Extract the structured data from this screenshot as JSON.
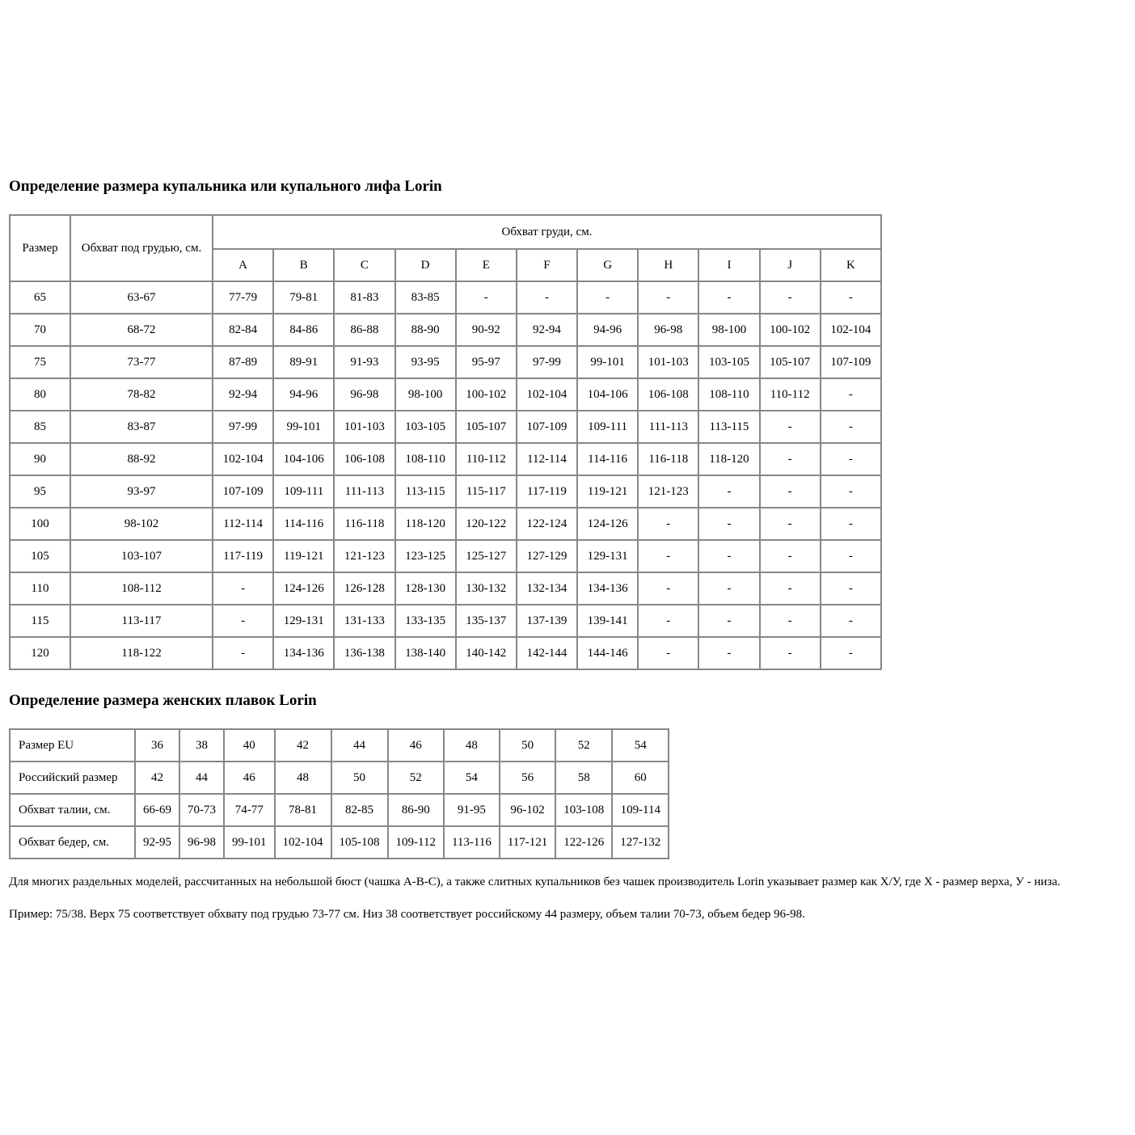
{
  "colors": {
    "border": "#878787",
    "text": "#000000",
    "background": "#ffffff"
  },
  "table1": {
    "title": "Определение размера купальника или купального лифа Lorin",
    "header": {
      "size": "Размер",
      "underbust": "Обхват под грудью, см.",
      "bust": "Обхват груди, см.",
      "cups": [
        "A",
        "B",
        "C",
        "D",
        "E",
        "F",
        "G",
        "H",
        "I",
        "J",
        "K"
      ]
    },
    "rows": [
      {
        "size": "65",
        "underbust": "63-67",
        "cups": [
          "77-79",
          "79-81",
          "81-83",
          "83-85",
          "-",
          "-",
          "-",
          "-",
          "-",
          "-",
          "-"
        ]
      },
      {
        "size": "70",
        "underbust": "68-72",
        "cups": [
          "82-84",
          "84-86",
          "86-88",
          "88-90",
          "90-92",
          "92-94",
          "94-96",
          "96-98",
          "98-100",
          "100-102",
          "102-104"
        ]
      },
      {
        "size": "75",
        "underbust": "73-77",
        "cups": [
          "87-89",
          "89-91",
          "91-93",
          "93-95",
          "95-97",
          "97-99",
          "99-101",
          "101-103",
          "103-105",
          "105-107",
          "107-109"
        ]
      },
      {
        "size": "80",
        "underbust": "78-82",
        "cups": [
          "92-94",
          "94-96",
          "96-98",
          "98-100",
          "100-102",
          "102-104",
          "104-106",
          "106-108",
          "108-110",
          "110-112",
          "-"
        ]
      },
      {
        "size": "85",
        "underbust": "83-87",
        "cups": [
          "97-99",
          "99-101",
          "101-103",
          "103-105",
          "105-107",
          "107-109",
          "109-111",
          "111-113",
          "113-115",
          "-",
          "-"
        ]
      },
      {
        "size": "90",
        "underbust": "88-92",
        "cups": [
          "102-104",
          "104-106",
          "106-108",
          "108-110",
          "110-112",
          "112-114",
          "114-116",
          "116-118",
          "118-120",
          "-",
          "-"
        ]
      },
      {
        "size": "95",
        "underbust": "93-97",
        "cups": [
          "107-109",
          "109-111",
          "111-113",
          "113-115",
          "115-117",
          "117-119",
          "119-121",
          "121-123",
          "-",
          "-",
          "-"
        ]
      },
      {
        "size": "100",
        "underbust": "98-102",
        "cups": [
          "112-114",
          "114-116",
          "116-118",
          "118-120",
          "120-122",
          "122-124",
          "124-126",
          "-",
          "-",
          "-",
          "-"
        ]
      },
      {
        "size": "105",
        "underbust": "103-107",
        "cups": [
          "117-119",
          "119-121",
          "121-123",
          "123-125",
          "125-127",
          "127-129",
          "129-131",
          "-",
          "-",
          "-",
          "-"
        ]
      },
      {
        "size": "110",
        "underbust": "108-112",
        "cups": [
          "-",
          "124-126",
          "126-128",
          "128-130",
          "130-132",
          "132-134",
          "134-136",
          "-",
          "-",
          "-",
          "-"
        ]
      },
      {
        "size": "115",
        "underbust": "113-117",
        "cups": [
          "-",
          "129-131",
          "131-133",
          "133-135",
          "135-137",
          "137-139",
          "139-141",
          "-",
          "-",
          "-",
          "-"
        ]
      },
      {
        "size": "120",
        "underbust": "118-122",
        "cups": [
          "-",
          "134-136",
          "136-138",
          "138-140",
          "140-142",
          "142-144",
          "144-146",
          "-",
          "-",
          "-",
          "-"
        ]
      }
    ]
  },
  "table2": {
    "title": "Определение размера женских плавок Lorin",
    "rows": [
      {
        "label": "Размер EU",
        "values": [
          "36",
          "38",
          "40",
          "42",
          "44",
          "46",
          "48",
          "50",
          "52",
          "54"
        ]
      },
      {
        "label": "Российский размер",
        "values": [
          "42",
          "44",
          "46",
          "48",
          "50",
          "52",
          "54",
          "56",
          "58",
          "60"
        ]
      },
      {
        "label": "Обхват талии, см.",
        "values": [
          "66-69",
          "70-73",
          "74-77",
          "78-81",
          "82-85",
          "86-90",
          "91-95",
          "96-102",
          "103-108",
          "109-114"
        ]
      },
      {
        "label": "Обхват бедер, см.",
        "values": [
          "92-95",
          "96-98",
          "99-101",
          "102-104",
          "105-108",
          "109-112",
          "113-116",
          "117-121",
          "122-126",
          "127-132"
        ]
      }
    ]
  },
  "notes": [
    "Для многих раздельных моделей, рассчитанных на небольшой бюст (чашка A-B-C), а также слитных купальников без чашек производитель Lorin указывает размер как Х/У, где Х - размер верха, У - низа.",
    "Пример: 75/38. Верх 75 соответствует обхвату под грудью 73-77 см. Низ 38 соответствует российскому 44 размеру, объем талии 70-73, объем бедер 96-98."
  ]
}
